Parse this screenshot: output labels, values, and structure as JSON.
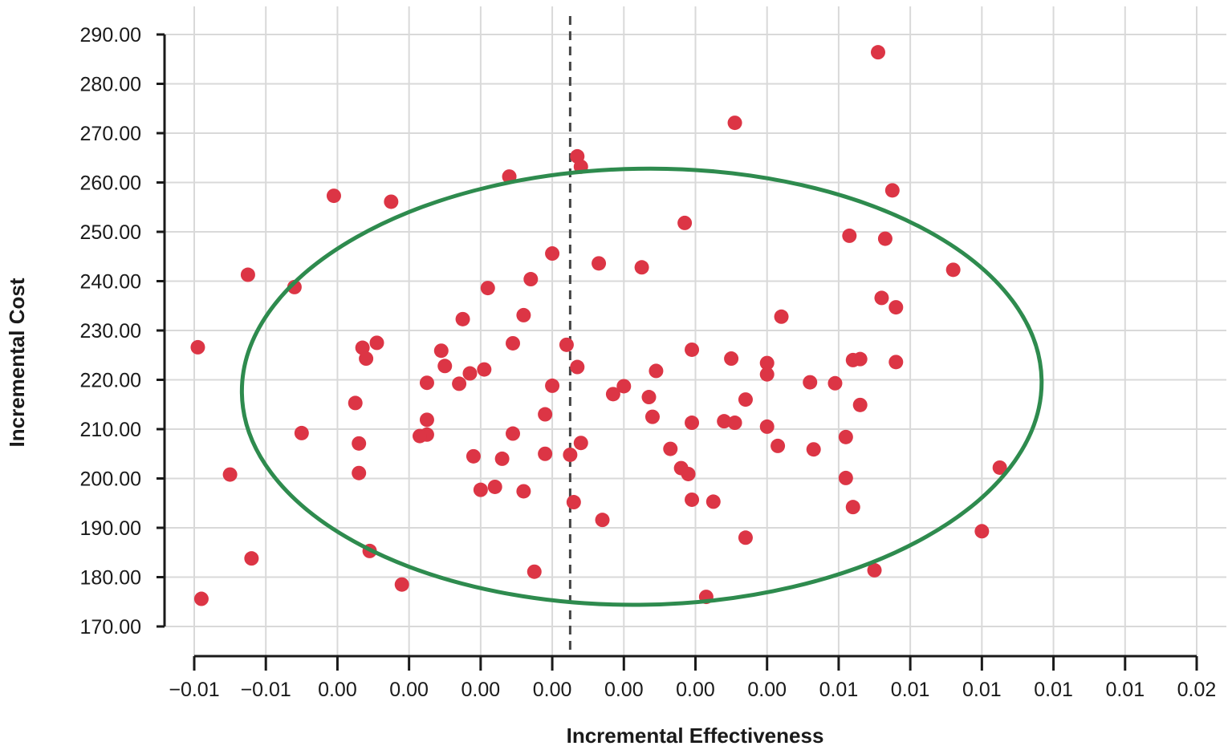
{
  "chart_data": {
    "type": "scatter",
    "xlabel": "Incremental Effectiveness",
    "ylabel": "Incremental Cost",
    "x_ticks": [
      "−0.01",
      "−0.01",
      "0.00",
      "0.00",
      "0.00",
      "0.00",
      "0.00",
      "0.00",
      "0.00",
      "0.01",
      "0.01",
      "0.01",
      "0.01",
      "0.01",
      "0.02"
    ],
    "y_ticks": [
      "170.00",
      "180.00",
      "190.00",
      "200.00",
      "210.00",
      "220.00",
      "230.00",
      "240.00",
      "250.00",
      "260.00",
      "270.00",
      "280.00",
      "290.00"
    ],
    "xlim": [
      -0.0105,
      0.0175
    ],
    "ylim": [
      170,
      290
    ],
    "grid": true,
    "point_color": "#dc3545",
    "ellipse_color": "#2e8b4e",
    "reference_line": {
      "x": 0,
      "style": "dashed",
      "color": "#444444"
    },
    "confidence_ellipse": {
      "cx": 0.002,
      "cy": 218.6,
      "rx": 0.01117,
      "ry": 44.2,
      "rotation_deg": 0.93
    },
    "points": [
      {
        "x": 0.0086,
        "y": 286.4
      },
      {
        "x": 0.0046,
        "y": 272.1
      },
      {
        "x": 0.0002,
        "y": 265.3
      },
      {
        "x": 0.0003,
        "y": 263.2
      },
      {
        "x": -0.0017,
        "y": 261.2
      },
      {
        "x": -0.0066,
        "y": 257.3
      },
      {
        "x": -0.005,
        "y": 256.1
      },
      {
        "x": 0.009,
        "y": 258.4
      },
      {
        "x": 0.0032,
        "y": 251.8
      },
      {
        "x": 0.0078,
        "y": 249.2
      },
      {
        "x": 0.0088,
        "y": 248.6
      },
      {
        "x": -0.0005,
        "y": 245.6
      },
      {
        "x": 0.0008,
        "y": 243.6
      },
      {
        "x": 0.002,
        "y": 242.8
      },
      {
        "x": 0.0107,
        "y": 242.3
      },
      {
        "x": -0.009,
        "y": 241.3
      },
      {
        "x": -0.0077,
        "y": 238.8
      },
      {
        "x": -0.0023,
        "y": 238.6
      },
      {
        "x": -0.0011,
        "y": 240.4
      },
      {
        "x": 0.0087,
        "y": 236.6
      },
      {
        "x": 0.0091,
        "y": 234.7
      },
      {
        "x": -0.0013,
        "y": 233.1
      },
      {
        "x": 0.0059,
        "y": 232.8
      },
      {
        "x": -0.003,
        "y": 232.3
      },
      {
        "x": -0.0104,
        "y": 226.6
      },
      {
        "x": -0.0058,
        "y": 226.5
      },
      {
        "x": -0.0054,
        "y": 227.5
      },
      {
        "x": -0.0016,
        "y": 227.4
      },
      {
        "x": -0.0001,
        "y": 227.1
      },
      {
        "x": -0.0036,
        "y": 225.9
      },
      {
        "x": 0.0034,
        "y": 226.1
      },
      {
        "x": -0.0057,
        "y": 224.3
      },
      {
        "x": 0.0045,
        "y": 224.3
      },
      {
        "x": 0.0079,
        "y": 224.0
      },
      {
        "x": 0.0081,
        "y": 224.2
      },
      {
        "x": 0.0091,
        "y": 223.6
      },
      {
        "x": 0.0055,
        "y": 223.4
      },
      {
        "x": -0.0035,
        "y": 222.8
      },
      {
        "x": 0.0002,
        "y": 222.6
      },
      {
        "x": -0.0024,
        "y": 222.1
      },
      {
        "x": 0.0024,
        "y": 221.8
      },
      {
        "x": -0.0028,
        "y": 221.3
      },
      {
        "x": 0.0055,
        "y": 221.1
      },
      {
        "x": 0.0067,
        "y": 219.5
      },
      {
        "x": 0.0074,
        "y": 219.3
      },
      {
        "x": -0.004,
        "y": 219.4
      },
      {
        "x": -0.0031,
        "y": 219.2
      },
      {
        "x": 0.0015,
        "y": 218.7
      },
      {
        "x": -0.0005,
        "y": 218.8
      },
      {
        "x": 0.0012,
        "y": 217.1
      },
      {
        "x": 0.0022,
        "y": 216.5
      },
      {
        "x": 0.0049,
        "y": 216.0
      },
      {
        "x": -0.006,
        "y": 215.3
      },
      {
        "x": 0.0081,
        "y": 214.9
      },
      {
        "x": 0.0023,
        "y": 212.5
      },
      {
        "x": -0.0007,
        "y": 213.0
      },
      {
        "x": -0.004,
        "y": 211.9
      },
      {
        "x": 0.0043,
        "y": 211.6
      },
      {
        "x": 0.0046,
        "y": 211.3
      },
      {
        "x": 0.0034,
        "y": 211.3
      },
      {
        "x": 0.0055,
        "y": 210.5
      },
      {
        "x": -0.0075,
        "y": 209.2
      },
      {
        "x": -0.004,
        "y": 208.9
      },
      {
        "x": -0.0042,
        "y": 208.6
      },
      {
        "x": -0.0016,
        "y": 209.1
      },
      {
        "x": 0.0077,
        "y": 208.4
      },
      {
        "x": -0.0059,
        "y": 207.1
      },
      {
        "x": 0.0003,
        "y": 207.2
      },
      {
        "x": 0.0058,
        "y": 206.6
      },
      {
        "x": 0.0068,
        "y": 205.9
      },
      {
        "x": 0.0028,
        "y": 206.0
      },
      {
        "x": -0.0027,
        "y": 204.5
      },
      {
        "x": -0.0007,
        "y": 205.0
      },
      {
        "x": 0.0,
        "y": 204.8
      },
      {
        "x": -0.0019,
        "y": 204.0
      },
      {
        "x": 0.0031,
        "y": 202.1
      },
      {
        "x": 0.0033,
        "y": 200.9
      },
      {
        "x": 0.012,
        "y": 202.2
      },
      {
        "x": -0.0095,
        "y": 200.8
      },
      {
        "x": -0.0059,
        "y": 201.1
      },
      {
        "x": 0.0077,
        "y": 200.1
      },
      {
        "x": -0.0021,
        "y": 198.3
      },
      {
        "x": -0.0025,
        "y": 197.7
      },
      {
        "x": -0.0013,
        "y": 197.4
      },
      {
        "x": 0.0034,
        "y": 195.7
      },
      {
        "x": 0.004,
        "y": 195.3
      },
      {
        "x": 0.0001,
        "y": 195.2
      },
      {
        "x": 0.0079,
        "y": 194.2
      },
      {
        "x": 0.0009,
        "y": 191.6
      },
      {
        "x": 0.0115,
        "y": 189.3
      },
      {
        "x": 0.0049,
        "y": 188.0
      },
      {
        "x": -0.0056,
        "y": 185.3
      },
      {
        "x": -0.0089,
        "y": 183.8
      },
      {
        "x": 0.0085,
        "y": 181.4
      },
      {
        "x": -0.001,
        "y": 181.1
      },
      {
        "x": -0.0047,
        "y": 178.5
      },
      {
        "x": 0.0038,
        "y": 176.0
      },
      {
        "x": -0.0103,
        "y": 175.6
      }
    ]
  }
}
